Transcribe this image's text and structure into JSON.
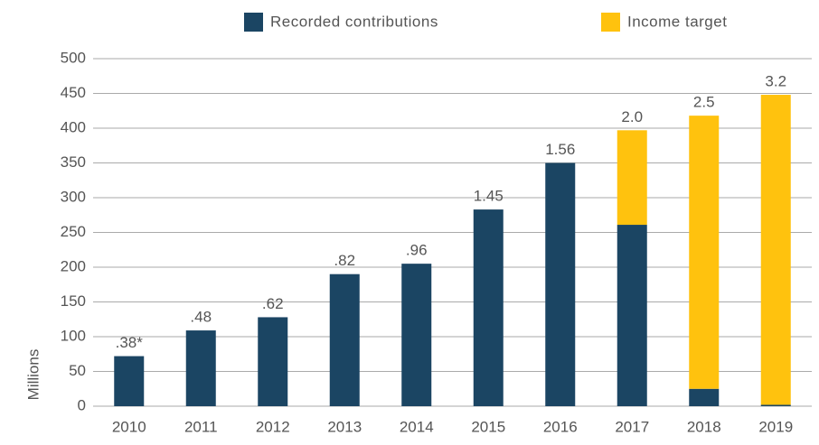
{
  "chart_data": {
    "type": "stacked_bar",
    "categories": [
      "2010",
      "2011",
      "2012",
      "2013",
      "2014",
      "2015",
      "2016",
      "2017",
      "2018",
      "2019"
    ],
    "series": [
      {
        "name": "Recorded contributions",
        "color": "#1b4563",
        "values": [
          72,
          109,
          128,
          190,
          205,
          283,
          350,
          261,
          25,
          2
        ]
      },
      {
        "name": "Income target",
        "color": "#ffc20e",
        "values": [
          null,
          null,
          null,
          null,
          null,
          null,
          null,
          136,
          393,
          446
        ]
      }
    ],
    "annotations": [
      ".38*",
      ".48",
      ".62",
      ".82",
      ".96",
      "1.45",
      "1.56",
      "2.0",
      "2.5",
      "3.2"
    ],
    "y_label": "Millions",
    "ylim": [
      0,
      500
    ],
    "yticks": [
      0,
      50,
      100,
      150,
      200,
      250,
      300,
      350,
      400,
      450,
      500
    ],
    "grid": true,
    "legend": "top"
  }
}
